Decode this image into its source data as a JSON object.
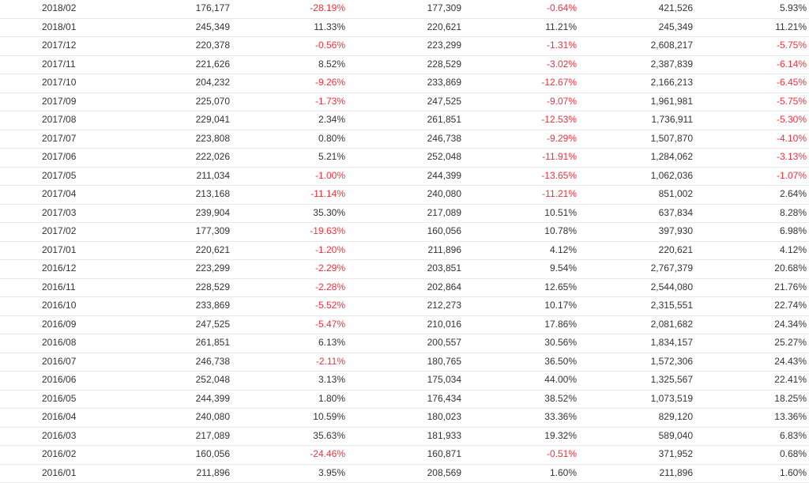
{
  "table": {
    "rows": [
      [
        "2018/02",
        "176,177",
        "-28.19%",
        "177,309",
        "-0.64%",
        "421,526",
        "5.93%"
      ],
      [
        "2018/01",
        "245,349",
        "11.33%",
        "220,621",
        "11.21%",
        "245,349",
        "11.21%"
      ],
      [
        "2017/12",
        "220,378",
        "-0.56%",
        "223,299",
        "-1.31%",
        "2,608,217",
        "-5.75%"
      ],
      [
        "2017/11",
        "221,626",
        "8.52%",
        "228,529",
        "-3.02%",
        "2,387,839",
        "-6.14%"
      ],
      [
        "2017/10",
        "204,232",
        "-9.26%",
        "233,869",
        "-12.67%",
        "2,166,213",
        "-6.45%"
      ],
      [
        "2017/09",
        "225,070",
        "-1.73%",
        "247,525",
        "-9.07%",
        "1,961,981",
        "-5.75%"
      ],
      [
        "2017/08",
        "229,041",
        "2.34%",
        "261,851",
        "-12.53%",
        "1,736,911",
        "-5.30%"
      ],
      [
        "2017/07",
        "223,808",
        "0.80%",
        "246,738",
        "-9.29%",
        "1,507,870",
        "-4.10%"
      ],
      [
        "2017/06",
        "222,026",
        "5.21%",
        "252,048",
        "-11.91%",
        "1,284,062",
        "-3.13%"
      ],
      [
        "2017/05",
        "211,034",
        "-1.00%",
        "244,399",
        "-13.65%",
        "1,062,036",
        "-1.07%"
      ],
      [
        "2017/04",
        "213,168",
        "-11.14%",
        "240,080",
        "-11.21%",
        "851,002",
        "2.64%"
      ],
      [
        "2017/03",
        "239,904",
        "35.30%",
        "217,089",
        "10.51%",
        "637,834",
        "8.28%"
      ],
      [
        "2017/02",
        "177,309",
        "-19.63%",
        "160,056",
        "10.78%",
        "397,930",
        "6.98%"
      ],
      [
        "2017/01",
        "220,621",
        "-1.20%",
        "211,896",
        "4.12%",
        "220,621",
        "4.12%"
      ],
      [
        "2016/12",
        "223,299",
        "-2.29%",
        "203,851",
        "9.54%",
        "2,767,379",
        "20.68%"
      ],
      [
        "2016/11",
        "228,529",
        "-2.28%",
        "202,864",
        "12.65%",
        "2,544,080",
        "21.76%"
      ],
      [
        "2016/10",
        "233,869",
        "-5.52%",
        "212,273",
        "10.17%",
        "2,315,551",
        "22.74%"
      ],
      [
        "2016/09",
        "247,525",
        "-5.47%",
        "210,016",
        "17.86%",
        "2,081,682",
        "24.34%"
      ],
      [
        "2016/08",
        "261,851",
        "6.13%",
        "200,557",
        "30.56%",
        "1,834,157",
        "25.27%"
      ],
      [
        "2016/07",
        "246,738",
        "-2.11%",
        "180,765",
        "36.50%",
        "1,572,306",
        "24.43%"
      ],
      [
        "2016/06",
        "252,048",
        "3.13%",
        "175,034",
        "44.00%",
        "1,325,567",
        "22.41%"
      ],
      [
        "2016/05",
        "244,399",
        "1.80%",
        "176,434",
        "38.52%",
        "1,073,519",
        "18.25%"
      ],
      [
        "2016/04",
        "240,080",
        "10.59%",
        "180,023",
        "33.36%",
        "829,120",
        "13.36%"
      ],
      [
        "2016/03",
        "217,089",
        "35.63%",
        "181,933",
        "19.32%",
        "589,040",
        "6.83%"
      ],
      [
        "2016/02",
        "160,056",
        "-24.46%",
        "160,871",
        "-0.51%",
        "371,952",
        "0.68%"
      ],
      [
        "2016/01",
        "211,896",
        "3.95%",
        "208,569",
        "1.60%",
        "211,896",
        "1.60%"
      ]
    ]
  },
  "colors": {
    "negative": "#f0303a",
    "text": "#333333",
    "row_border": "#e8e8e8"
  }
}
